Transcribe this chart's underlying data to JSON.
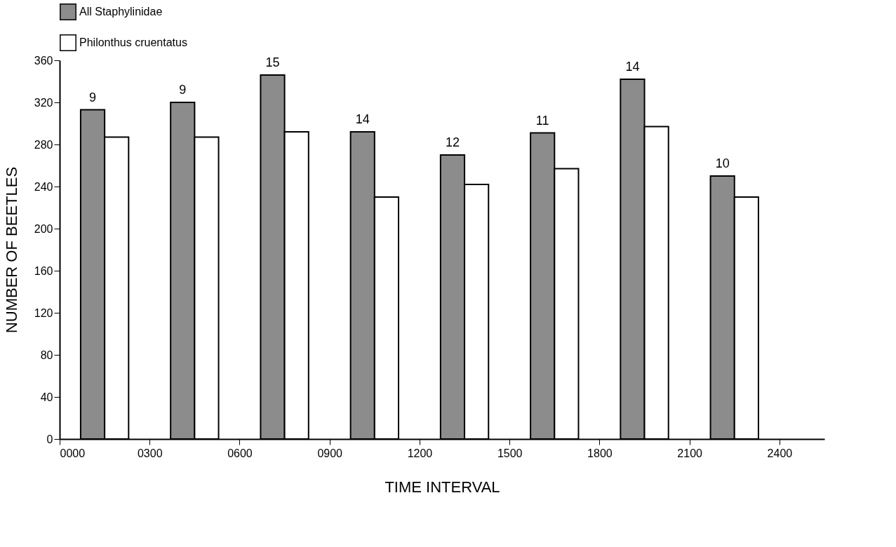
{
  "chart_data": {
    "type": "bar",
    "xlabel": "TIME INTERVAL",
    "ylabel": "NUMBER OF BEETLES",
    "x": [
      150,
      450,
      750,
      1050,
      1350,
      1650,
      1950,
      2250
    ],
    "series": [
      {
        "name": "All Staphylinidae",
        "color": "#8c8c8c",
        "values": [
          313,
          320,
          346,
          292,
          270,
          291,
          342,
          250
        ]
      },
      {
        "name": "Philonthus cruentatus",
        "color": "#ffffff",
        "values": [
          287,
          287,
          292,
          230,
          242,
          257,
          297,
          230
        ]
      }
    ],
    "xlim": [
      0,
      2550
    ],
    "xticks": [
      {
        "value": 0,
        "label": "0000"
      },
      {
        "value": 300,
        "label": "0300"
      },
      {
        "value": 600,
        "label": "0600"
      },
      {
        "value": 900,
        "label": "0900"
      },
      1200,
      1500,
      1800,
      2100,
      2400
    ],
    "ylim": [
      0,
      360
    ],
    "yticks": [
      0,
      40,
      80,
      120,
      160,
      200,
      240,
      280,
      320,
      360
    ],
    "annotations": [
      {
        "text": "9",
        "x": 150,
        "y": 313
      },
      {
        "text": "9",
        "x": 450,
        "y": 320
      },
      {
        "text": "15",
        "x": 750,
        "y": 346
      },
      {
        "text": "14",
        "x": 1050,
        "y": 292
      },
      {
        "text": "12",
        "x": 1350,
        "y": 270
      },
      {
        "text": "11",
        "x": 1650,
        "y": 291
      },
      {
        "text": "14",
        "x": 1950,
        "y": 342
      },
      {
        "text": "10",
        "x": 2250,
        "y": 250
      }
    ],
    "grid": false,
    "legend": "top"
  }
}
